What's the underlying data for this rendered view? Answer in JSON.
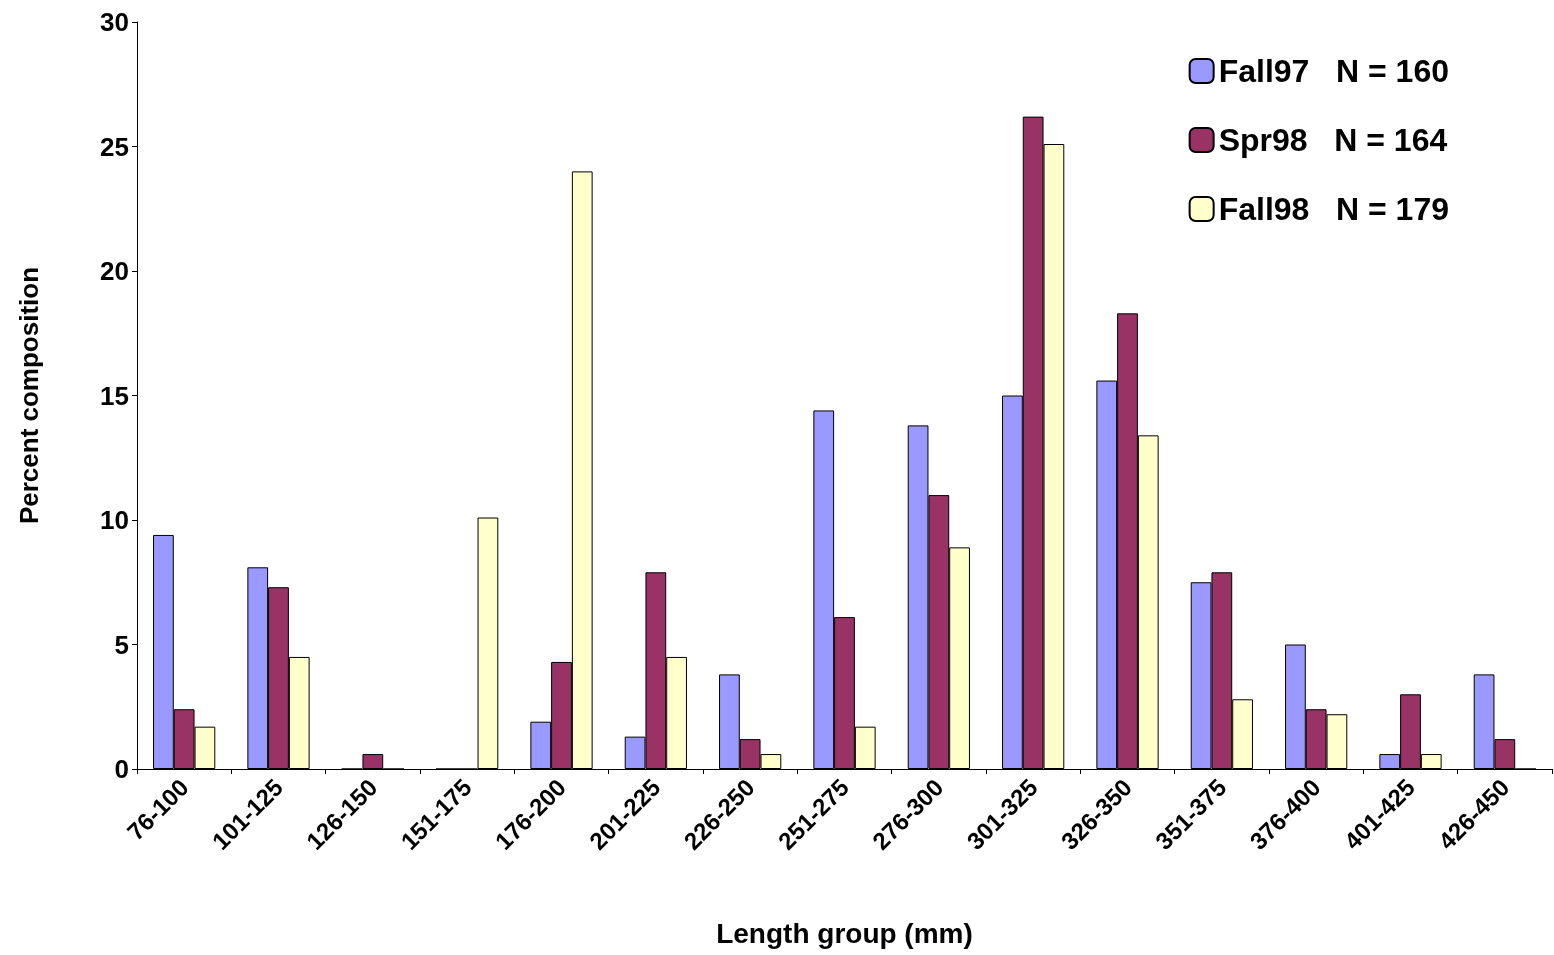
{
  "chart_data": {
    "type": "bar",
    "xlabel": "Length group (mm)",
    "ylabel": "Percent composition",
    "categories": [
      "76-100",
      "101-125",
      "126-150",
      "151-175",
      "176-200",
      "201-225",
      "226-250",
      "251-275",
      "276-300",
      "301-325",
      "326-350",
      "351-375",
      "376-400",
      "401-425",
      "426-450"
    ],
    "series": [
      {
        "name": "Fall97   N = 160",
        "color": "#9999ff",
        "values": [
          9.4,
          8.1,
          0,
          0,
          1.9,
          1.3,
          3.8,
          14.4,
          13.8,
          15.0,
          15.6,
          7.5,
          5.0,
          0.6,
          3.8
        ]
      },
      {
        "name": "Spr98   N = 164",
        "color": "#993366",
        "values": [
          2.4,
          7.3,
          0.6,
          0,
          4.3,
          7.9,
          1.2,
          6.1,
          11.0,
          26.2,
          18.3,
          7.9,
          2.4,
          3.0,
          1.2
        ]
      },
      {
        "name": "Fall98   N = 179",
        "color": "#ffffcc",
        "values": [
          1.7,
          4.5,
          0,
          10.1,
          24.0,
          4.5,
          0.6,
          1.7,
          8.9,
          25.1,
          13.4,
          2.8,
          2.2,
          0.6,
          0
        ]
      }
    ],
    "ylim": [
      0,
      30
    ],
    "yticks": [
      0,
      5,
      10,
      15,
      20,
      25,
      30
    ],
    "grid": false,
    "legend": "top right"
  }
}
